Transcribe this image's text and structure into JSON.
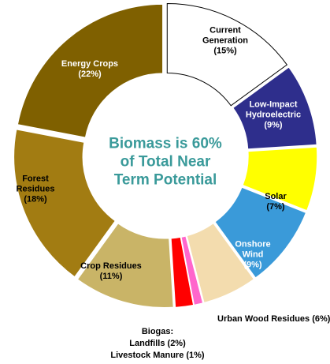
{
  "chart_data": {
    "type": "donut",
    "center_label": "Biomass is 60% of Total Near Term Potential",
    "annotation": "Biogas:",
    "categories": [
      "Current Generation",
      "Low-Impact Hydroelectric",
      "Solar",
      "Onshore Wind",
      "Urban Wood Residues",
      "Livestock Manure",
      "Landfills",
      "Crop Residues",
      "Forest Residues",
      "Energy Crops"
    ],
    "values": [
      15,
      9,
      7,
      9,
      6,
      1,
      2,
      11,
      18,
      22
    ],
    "value_labels": [
      "(15%)",
      "(9%)",
      "(7%)",
      "(9%)",
      "(6%)",
      "(1%)",
      "(2%)",
      "(11%)",
      "(18%)",
      "(22%)"
    ],
    "colors": [
      "#ffffff",
      "#2e2e8c",
      "#ffff00",
      "#3a9ad9",
      "#f3dcae",
      "#ff66cc",
      "#ff0000",
      "#c9b467",
      "#a27c12",
      "#7f6000"
    ]
  }
}
